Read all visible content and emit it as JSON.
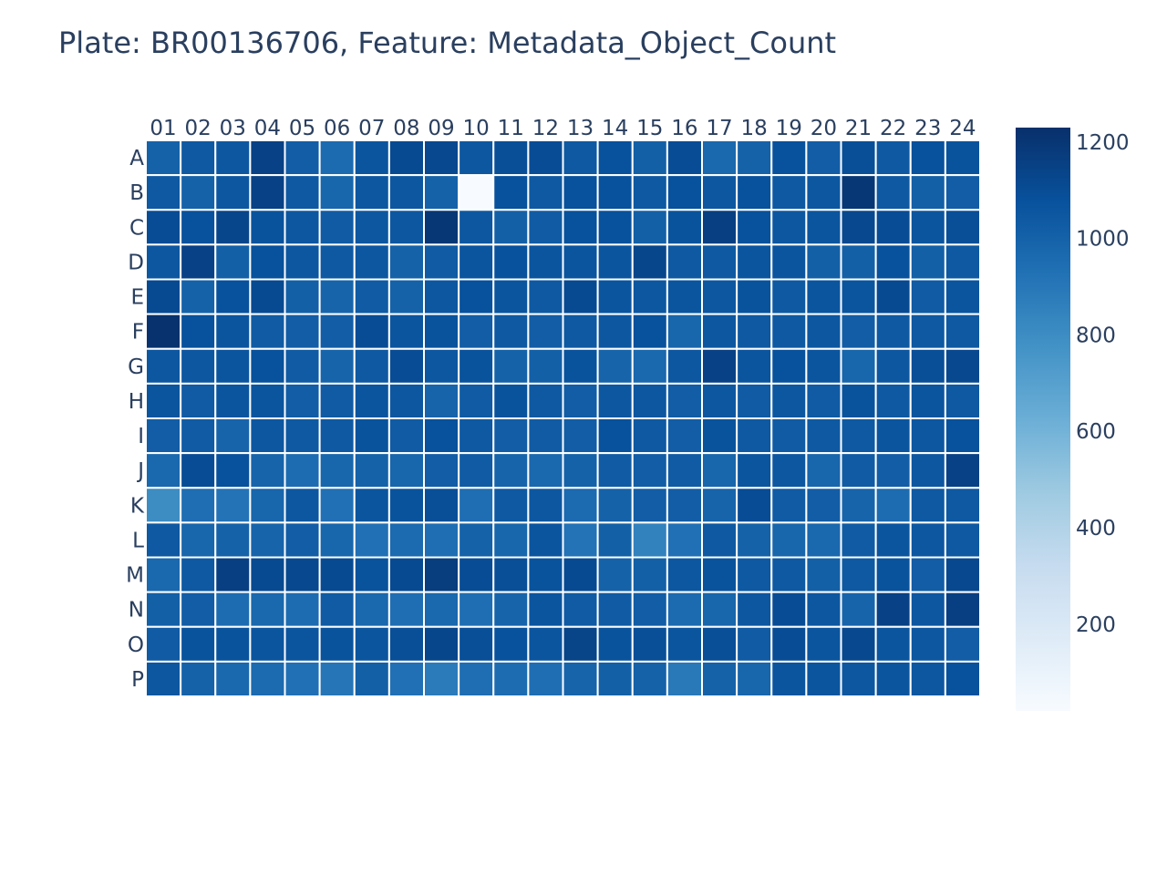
{
  "title": "Plate: BR00136706, Feature: Metadata_Object_Count",
  "colors": {
    "text": "#2a3f5f",
    "cell_border": "#ffffff",
    "scale": [
      "#f7fbff",
      "#deebf7",
      "#c6dbef",
      "#9ecae1",
      "#6baed6",
      "#4292c6",
      "#2171b5",
      "#08519c",
      "#08306b"
    ]
  },
  "chart_data": {
    "type": "heatmap",
    "title": "Plate: BR00136706, Feature: Metadata_Object_Count",
    "x": [
      "01",
      "02",
      "03",
      "04",
      "05",
      "06",
      "07",
      "08",
      "09",
      "10",
      "11",
      "12",
      "13",
      "14",
      "15",
      "16",
      "17",
      "18",
      "19",
      "20",
      "21",
      "22",
      "23",
      "24"
    ],
    "y": [
      "A",
      "B",
      "C",
      "D",
      "E",
      "F",
      "G",
      "H",
      "I",
      "J",
      "K",
      "L",
      "M",
      "N",
      "O",
      "P"
    ],
    "x_axis_position": "top",
    "colorscale": "Blues",
    "zmin": 20,
    "zmax": 1230,
    "colorbar": {
      "tickvals": [
        200,
        400,
        600,
        800,
        1000,
        1200
      ],
      "position": "right"
    },
    "z": [
      [
        1000,
        1040,
        1050,
        1150,
        1020,
        960,
        1060,
        1110,
        1120,
        1050,
        1090,
        1100,
        1040,
        1080,
        1010,
        1100,
        970,
        1000,
        1080,
        1020,
        1090,
        1040,
        1080,
        1070
      ],
      [
        1040,
        1000,
        1050,
        1150,
        1040,
        980,
        1050,
        1050,
        1000,
        20,
        1080,
        1040,
        1080,
        1080,
        1040,
        1080,
        1050,
        1080,
        1040,
        1050,
        1200,
        1040,
        1010,
        1020
      ],
      [
        1100,
        1080,
        1130,
        1070,
        1050,
        1030,
        1050,
        1050,
        1200,
        1050,
        1010,
        1030,
        1080,
        1080,
        1010,
        1070,
        1160,
        1080,
        1050,
        1060,
        1120,
        1100,
        1060,
        1090
      ],
      [
        1050,
        1150,
        1010,
        1080,
        1050,
        1040,
        1050,
        1000,
        1030,
        1060,
        1080,
        1060,
        1060,
        1060,
        1130,
        1040,
        1040,
        1060,
        1060,
        1010,
        1010,
        1080,
        1010,
        1040
      ],
      [
        1110,
        1000,
        1080,
        1110,
        1010,
        990,
        1030,
        1000,
        1050,
        1080,
        1060,
        1040,
        1110,
        1060,
        1050,
        1060,
        1050,
        1070,
        1040,
        1060,
        1060,
        1110,
        1030,
        1060
      ],
      [
        1220,
        1080,
        1060,
        1030,
        1020,
        1020,
        1100,
        1060,
        1070,
        1020,
        1040,
        1020,
        1040,
        1050,
        1080,
        980,
        1050,
        1040,
        1040,
        1050,
        1020,
        1040,
        1040,
        1040
      ],
      [
        1050,
        1050,
        1060,
        1080,
        1030,
        990,
        1040,
        1100,
        1050,
        1070,
        1000,
        1010,
        1070,
        990,
        970,
        1050,
        1150,
        1060,
        1080,
        1060,
        980,
        1050,
        1090,
        1120
      ],
      [
        1060,
        1030,
        1060,
        1060,
        1020,
        1030,
        1060,
        1050,
        990,
        1030,
        1070,
        1040,
        1020,
        1050,
        1050,
        1020,
        1050,
        1030,
        1050,
        1030,
        1070,
        1040,
        1060,
        1040
      ],
      [
        1020,
        1030,
        990,
        1050,
        1040,
        1040,
        1070,
        1030,
        1080,
        1040,
        1020,
        1030,
        1020,
        1080,
        1040,
        1020,
        1070,
        1040,
        1030,
        1040,
        1040,
        1060,
        1050,
        1080
      ],
      [
        970,
        1100,
        1080,
        990,
        950,
        980,
        1000,
        980,
        1020,
        1030,
        990,
        970,
        1000,
        1030,
        1020,
        1030,
        980,
        1060,
        1050,
        980,
        1030,
        1020,
        1050,
        1150
      ],
      [
        800,
        940,
        920,
        980,
        1050,
        930,
        1060,
        1070,
        1090,
        940,
        1040,
        1050,
        960,
        1000,
        1020,
        1020,
        990,
        1100,
        1030,
        1020,
        990,
        950,
        1040,
        1040
      ],
      [
        1040,
        980,
        1000,
        990,
        1020,
        980,
        930,
        960,
        940,
        1000,
        980,
        1060,
        920,
        1010,
        850,
        930,
        1040,
        1000,
        980,
        970,
        1030,
        1060,
        1050,
        1040
      ],
      [
        970,
        1040,
        1160,
        1110,
        1120,
        1110,
        1070,
        1110,
        1170,
        1100,
        1090,
        1070,
        1110,
        1000,
        1010,
        1050,
        1070,
        1040,
        1040,
        1010,
        1040,
        1070,
        1020,
        1120
      ],
      [
        1010,
        1020,
        950,
        970,
        950,
        1030,
        970,
        940,
        970,
        940,
        990,
        1060,
        1030,
        1030,
        1020,
        960,
        980,
        1050,
        1100,
        1050,
        990,
        1150,
        1050,
        1160
      ],
      [
        1030,
        1070,
        1070,
        1060,
        1060,
        1070,
        1060,
        1090,
        1130,
        1090,
        1080,
        1060,
        1140,
        1070,
        1090,
        1060,
        1090,
        1030,
        1100,
        1060,
        1120,
        1060,
        1050,
        1020
      ],
      [
        1050,
        1000,
        970,
        960,
        930,
        910,
        1010,
        930,
        880,
        940,
        950,
        940,
        990,
        1010,
        1000,
        890,
        1000,
        980,
        1060,
        1060,
        1050,
        1060,
        1050,
        1080
      ]
    ]
  }
}
